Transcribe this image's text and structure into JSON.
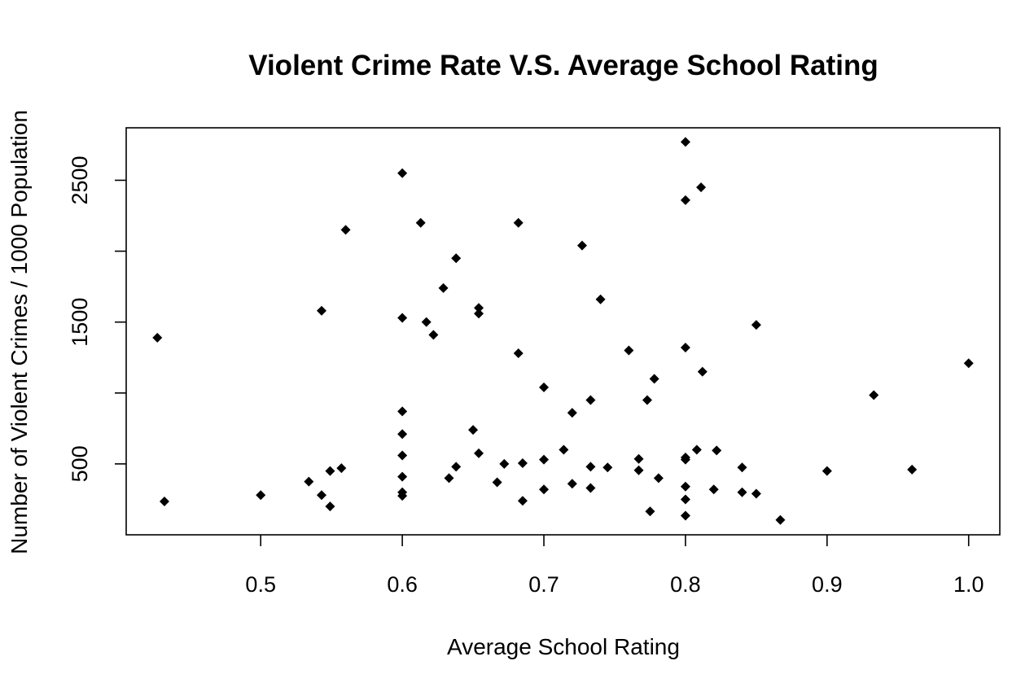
{
  "chart_data": {
    "type": "scatter",
    "title": "Violent Crime Rate V.S. Average School Rating",
    "xlabel": "Average School Rating",
    "ylabel": "Number of Violent Crimes / 1000 Population",
    "xlim": [
      0.405,
      1.022
    ],
    "ylim": [
      0,
      2870
    ],
    "x_ticks": [
      0.5,
      0.6,
      0.7,
      0.8,
      0.9,
      1.0
    ],
    "x_tick_labels": [
      "0.5",
      "0.6",
      "0.7",
      "0.8",
      "0.9",
      "1.0"
    ],
    "y_ticks": [
      500,
      1000,
      1500,
      2000,
      2500
    ],
    "y_tick_labels": [
      "500",
      "",
      "1500",
      "",
      "2500"
    ],
    "grid": false,
    "marker": "diamond",
    "color": "#000000",
    "points": [
      {
        "x": 0.427,
        "y": 1390
      },
      {
        "x": 0.432,
        "y": 235
      },
      {
        "x": 0.5,
        "y": 280
      },
      {
        "x": 0.534,
        "y": 375
      },
      {
        "x": 0.543,
        "y": 280
      },
      {
        "x": 0.543,
        "y": 1580
      },
      {
        "x": 0.549,
        "y": 450
      },
      {
        "x": 0.549,
        "y": 200
      },
      {
        "x": 0.557,
        "y": 470
      },
      {
        "x": 0.56,
        "y": 2150
      },
      {
        "x": 0.6,
        "y": 2550
      },
      {
        "x": 0.6,
        "y": 1530
      },
      {
        "x": 0.6,
        "y": 870
      },
      {
        "x": 0.6,
        "y": 710
      },
      {
        "x": 0.6,
        "y": 560
      },
      {
        "x": 0.6,
        "y": 410
      },
      {
        "x": 0.6,
        "y": 300
      },
      {
        "x": 0.6,
        "y": 275
      },
      {
        "x": 0.613,
        "y": 2200
      },
      {
        "x": 0.617,
        "y": 1500
      },
      {
        "x": 0.622,
        "y": 1410
      },
      {
        "x": 0.629,
        "y": 1740
      },
      {
        "x": 0.633,
        "y": 400
      },
      {
        "x": 0.638,
        "y": 1950
      },
      {
        "x": 0.638,
        "y": 480
      },
      {
        "x": 0.65,
        "y": 740
      },
      {
        "x": 0.654,
        "y": 1600
      },
      {
        "x": 0.654,
        "y": 1560
      },
      {
        "x": 0.654,
        "y": 575
      },
      {
        "x": 0.667,
        "y": 370
      },
      {
        "x": 0.672,
        "y": 500
      },
      {
        "x": 0.682,
        "y": 2200
      },
      {
        "x": 0.682,
        "y": 1280
      },
      {
        "x": 0.685,
        "y": 505
      },
      {
        "x": 0.685,
        "y": 240
      },
      {
        "x": 0.7,
        "y": 1040
      },
      {
        "x": 0.7,
        "y": 530
      },
      {
        "x": 0.7,
        "y": 320
      },
      {
        "x": 0.714,
        "y": 600
      },
      {
        "x": 0.72,
        "y": 860
      },
      {
        "x": 0.72,
        "y": 360
      },
      {
        "x": 0.727,
        "y": 2040
      },
      {
        "x": 0.733,
        "y": 950
      },
      {
        "x": 0.733,
        "y": 480
      },
      {
        "x": 0.733,
        "y": 330
      },
      {
        "x": 0.74,
        "y": 1660
      },
      {
        "x": 0.745,
        "y": 475
      },
      {
        "x": 0.76,
        "y": 1300
      },
      {
        "x": 0.767,
        "y": 535
      },
      {
        "x": 0.767,
        "y": 455
      },
      {
        "x": 0.773,
        "y": 950
      },
      {
        "x": 0.775,
        "y": 165
      },
      {
        "x": 0.778,
        "y": 1100
      },
      {
        "x": 0.781,
        "y": 400
      },
      {
        "x": 0.8,
        "y": 2770
      },
      {
        "x": 0.8,
        "y": 2360
      },
      {
        "x": 0.8,
        "y": 1320
      },
      {
        "x": 0.8,
        "y": 545
      },
      {
        "x": 0.8,
        "y": 530
      },
      {
        "x": 0.8,
        "y": 340
      },
      {
        "x": 0.8,
        "y": 250
      },
      {
        "x": 0.8,
        "y": 135
      },
      {
        "x": 0.808,
        "y": 600
      },
      {
        "x": 0.811,
        "y": 2450
      },
      {
        "x": 0.812,
        "y": 1150
      },
      {
        "x": 0.82,
        "y": 320
      },
      {
        "x": 0.822,
        "y": 595
      },
      {
        "x": 0.84,
        "y": 475
      },
      {
        "x": 0.84,
        "y": 300
      },
      {
        "x": 0.85,
        "y": 1480
      },
      {
        "x": 0.85,
        "y": 290
      },
      {
        "x": 0.867,
        "y": 105
      },
      {
        "x": 0.9,
        "y": 450
      },
      {
        "x": 0.933,
        "y": 985
      },
      {
        "x": 0.96,
        "y": 460
      },
      {
        "x": 1.0,
        "y": 1210
      }
    ]
  }
}
